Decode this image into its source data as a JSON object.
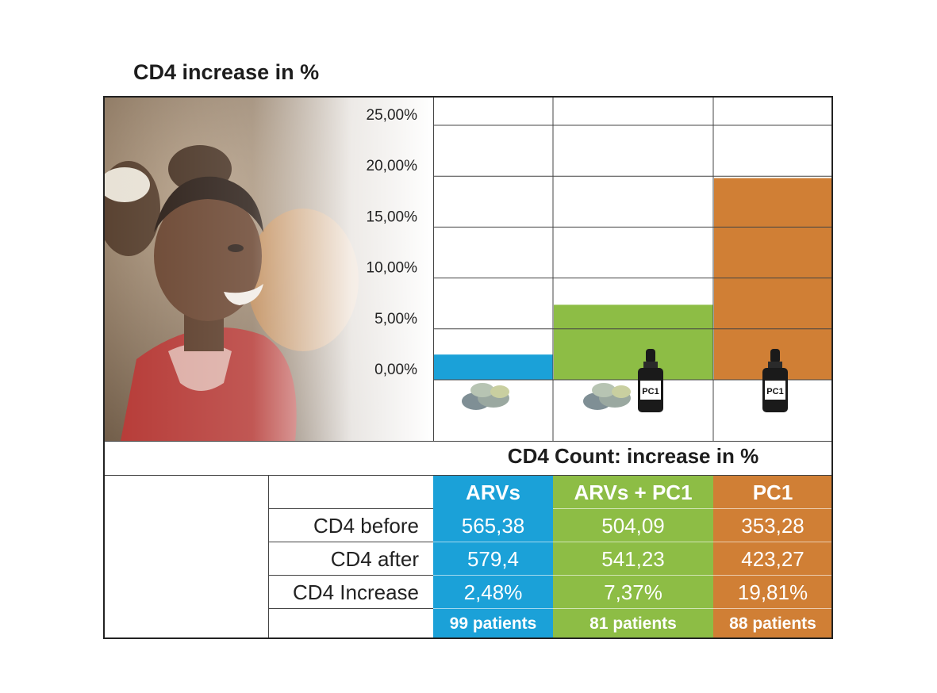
{
  "colors": {
    "arvs": "#1ba1d8",
    "arvs_pc1": "#8dbd45",
    "pc1": "#d07f35"
  },
  "chart_data": {
    "type": "bar",
    "title": "CD4 increase in %",
    "categories": [
      "ARVs",
      "ARVs + PC1",
      "PC1"
    ],
    "values": [
      2.48,
      7.37,
      19.81
    ],
    "yticks": [
      "0,00%",
      "5,00%",
      "10,00%",
      "15,00%",
      "20,00%",
      "25,00%"
    ],
    "ylim": [
      0,
      25
    ],
    "xlabel": "",
    "ylabel": "",
    "bottle_label": "PC1"
  },
  "table": {
    "subtitle": "CD4 Count: increase in %",
    "headers": [
      "ARVs",
      "ARVs + PC1",
      "PC1"
    ],
    "rows": [
      {
        "label": "CD4 before",
        "values": [
          "565,38",
          "504,09",
          "353,28"
        ]
      },
      {
        "label": "CD4 after",
        "values": [
          "579,4",
          "541,23",
          "423,27"
        ]
      },
      {
        "label": "CD4 Increase",
        "values": [
          "2,48%",
          "7,37%",
          "19,81%"
        ]
      }
    ],
    "patients": [
      "99 patients",
      "81 patients",
      "88 patients"
    ]
  }
}
